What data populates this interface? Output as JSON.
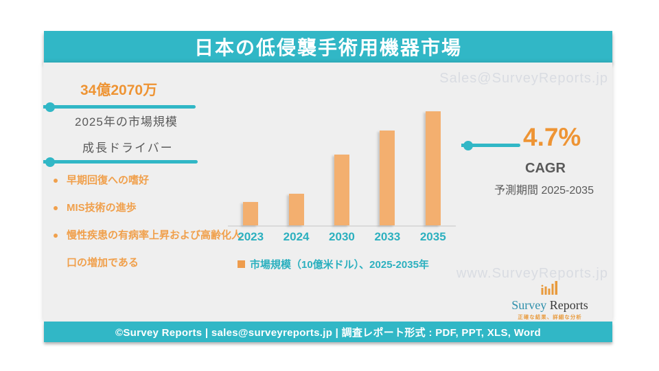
{
  "slide": {
    "title": "日本の低侵襲手術用機器市場",
    "footer": "©Survey Reports | sales@surveyreports.jp |  調査レポート形式 : PDF, PPT, XLS, Word"
  },
  "colors": {
    "teal": "#31b7c6",
    "orange_text": "#ee9434",
    "bullet_orange": "#f0a04c",
    "bar_orange": "#f3af6f",
    "dark_text": "#595959",
    "watermark_gray": "#d9dce2",
    "panel_bg": "#efefef"
  },
  "left_panel": {
    "market_value": "34億2070万",
    "market_value_label": "2025年の市場規模",
    "drivers_heading": "成長ドライバー",
    "drivers": [
      "早期回復への嗜好",
      "MIS技術の進歩",
      "慢性疾患の有病率上昇および高齢化人口の増加である"
    ]
  },
  "right_panel": {
    "cagr_value": "4.7%",
    "cagr_label": "CAGR",
    "forecast_period": "予測期間 2025-2035"
  },
  "watermarks": {
    "top": "Sales@SurveyReports.jp",
    "bottom": "www.SurveyReports.jp"
  },
  "logo": {
    "name_part1": "Survey",
    "name_part2": "Reports",
    "tagline": "正確な結果、詳細な分析"
  },
  "chart_data": {
    "type": "bar",
    "categories": [
      "2023",
      "2024",
      "2030",
      "2033",
      "2035"
    ],
    "values": [
      3.1,
      3.3,
      4.3,
      4.9,
      5.4
    ],
    "title": "",
    "xlabel": "",
    "ylabel": "市場規模（10億米ドル）",
    "legend": "市場規模（10億米ドル）、2025-2035年",
    "legend_position": "bottom",
    "grid": false,
    "y_axis_hidden": true,
    "ylim": [
      2.5,
      5.5
    ],
    "bar_color": "#f3af6f"
  }
}
